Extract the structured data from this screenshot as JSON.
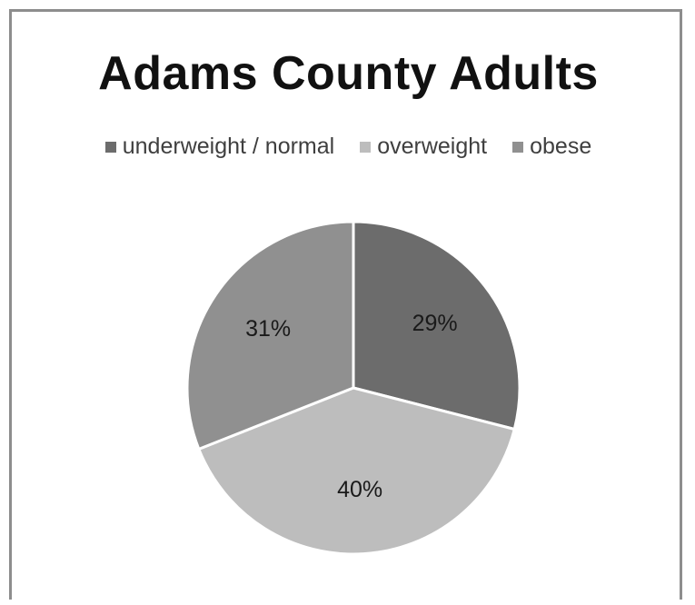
{
  "chart_data": {
    "type": "pie",
    "title": "Adams County Adults",
    "legend_position": "top",
    "slices": [
      {
        "label": "underweight / normal",
        "value": 29,
        "display": "29%",
        "color": "#6c6c6c"
      },
      {
        "label": "overweight",
        "value": 40,
        "display": "40%",
        "color": "#bdbdbd"
      },
      {
        "label": "obese",
        "value": 31,
        "display": "31%",
        "color": "#909090"
      }
    ]
  }
}
